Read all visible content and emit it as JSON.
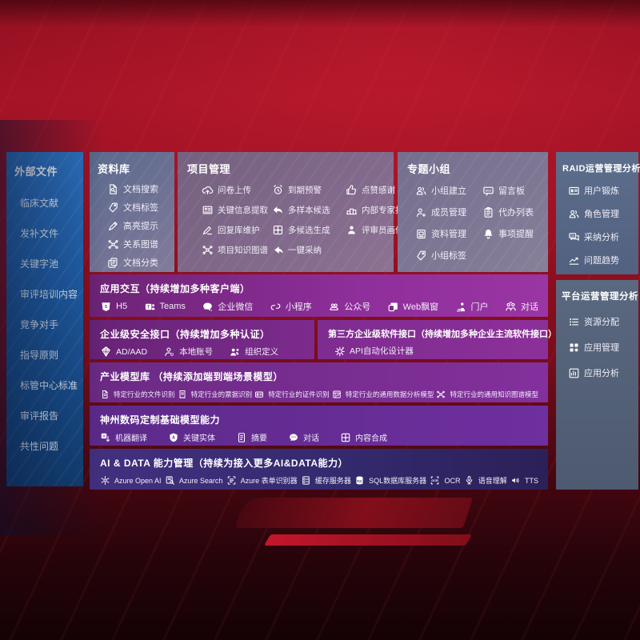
{
  "colors": {
    "background_red": "#8e1020",
    "sidebar_blue": "#1f5fa8",
    "panel_slate": "#6f7294",
    "panel_mauve": "#826a8c",
    "row_purple": "#7c2b8d",
    "row_magenta": "#8f2f9b",
    "row_deep_purple": "#5f2b90",
    "row_indigo": "#332a6e",
    "text": "#ffffff"
  },
  "sidebar": {
    "title": "外部文件",
    "items": [
      {
        "label": "临床文献"
      },
      {
        "label": "发补文件"
      },
      {
        "label": "关键字池"
      },
      {
        "label": "审评培训内容"
      },
      {
        "label": "竞争对手"
      },
      {
        "label": "指导原则"
      },
      {
        "label": "标管中心标准"
      },
      {
        "label": "审评报告"
      },
      {
        "label": "共性问题"
      }
    ]
  },
  "panels": {
    "library": {
      "title": "资料库",
      "items": [
        {
          "label": "文档搜索",
          "icon": "doc-search-icon"
        },
        {
          "label": "文档标签",
          "icon": "tag-icon"
        },
        {
          "label": "高亮提示",
          "icon": "highlight-pen-icon"
        },
        {
          "label": "关系图谱",
          "icon": "graph-icon"
        },
        {
          "label": "文档分类",
          "icon": "doc-copy-icon"
        }
      ]
    },
    "project": {
      "title": "项目管理",
      "items": [
        {
          "label": "问卷上传",
          "icon": "cloud-upload-icon"
        },
        {
          "label": "到期预警",
          "icon": "alarm-icon"
        },
        {
          "label": "点赞感谢",
          "icon": "thumbs-up-icon"
        },
        {
          "label": "关键信息提取",
          "icon": "extract-icon"
        },
        {
          "label": "多样本候选",
          "icon": "reply-arrow-icon"
        },
        {
          "label": "内部专家排名",
          "icon": "ranking-icon"
        },
        {
          "label": "回复库维护",
          "icon": "pencil-icon"
        },
        {
          "label": "多候选生成",
          "icon": "puzzle-icon"
        },
        {
          "label": "评审员画像",
          "icon": "person-icon"
        },
        {
          "label": "项目知识图谱",
          "icon": "graph-icon"
        },
        {
          "label": "一键采纳",
          "icon": "adopt-arrow-icon"
        }
      ]
    },
    "groups": {
      "title": "专题小组",
      "items": [
        {
          "label": "小组建立",
          "icon": "people-icon"
        },
        {
          "label": "留言板",
          "icon": "bbs-icon"
        },
        {
          "label": "成员管理",
          "icon": "person-add-icon"
        },
        {
          "label": "代办列表",
          "icon": "clipboard-icon"
        },
        {
          "label": "资料管理",
          "icon": "archive-icon"
        },
        {
          "label": "事项提醒",
          "icon": "bell-icon"
        },
        {
          "label": "小组标签",
          "icon": "tag-icon"
        }
      ]
    },
    "raid": {
      "title": "RAID运营管理分析",
      "items": [
        {
          "label": "用户锻炼",
          "icon": "id-card-icon"
        },
        {
          "label": "角色管理",
          "icon": "people-icon"
        },
        {
          "label": "采纳分析",
          "icon": "chat-qa-icon"
        },
        {
          "label": "问题趋势",
          "icon": "trend-icon"
        }
      ]
    },
    "platform": {
      "title": "平台运营管理分析",
      "items": [
        {
          "label": "资源分配",
          "icon": "list-icon"
        },
        {
          "label": "应用管理",
          "icon": "grid-icon"
        },
        {
          "label": "应用分析",
          "icon": "chart-icon"
        }
      ]
    }
  },
  "rows": {
    "interaction": {
      "title": "应用交互（持续增加多种客户端）",
      "items": [
        {
          "label": "H5",
          "icon": "h5-icon"
        },
        {
          "label": "Teams",
          "icon": "teams-icon"
        },
        {
          "label": "企业微信",
          "icon": "wecom-icon"
        },
        {
          "label": "小程序",
          "icon": "miniprogram-icon"
        },
        {
          "label": "公众号",
          "icon": "official-account-icon"
        },
        {
          "label": "Web飘窗",
          "icon": "web-window-icon"
        },
        {
          "label": "门户",
          "icon": "portal-icon"
        },
        {
          "label": "对话",
          "icon": "dialog-icon"
        }
      ]
    },
    "security": {
      "title": "企业级安全接口（持续增加多种认证）",
      "items": [
        {
          "label": "AD/AAD",
          "icon": "ad-shield-icon"
        },
        {
          "label": "本地账号",
          "icon": "local-account-icon"
        },
        {
          "label": "组织定义",
          "icon": "org-icon"
        }
      ]
    },
    "thirdparty": {
      "title": "第三方企业级软件接口（持续增加多种企业主流软件接口）",
      "items": [
        {
          "label": "API自动化设计器",
          "icon": "api-gear-icon"
        }
      ]
    },
    "models": {
      "title": "产业模型库 （持续添加端到端场景模型）",
      "items": [
        {
          "label": "特定行业的文件识别",
          "icon": "doc-icon"
        },
        {
          "label": "特定行业的票据识别",
          "icon": "receipt-icon"
        },
        {
          "label": "特定行业的证件识别",
          "icon": "id-badge-icon"
        },
        {
          "label": "特定行业的通用数据分析模型",
          "icon": "data-model-icon"
        },
        {
          "label": "特定行业的通用知识图谱模型",
          "icon": "graph-icon"
        }
      ]
    },
    "foundation": {
      "title": "神州数码定制基础模型能力",
      "items": [
        {
          "label": "机器翻译",
          "icon": "translate-icon"
        },
        {
          "label": "关键实体",
          "icon": "entity-shield-icon"
        },
        {
          "label": "摘要",
          "icon": "summary-doc-icon"
        },
        {
          "label": "对话",
          "icon": "chat-icon"
        },
        {
          "label": "内容合成",
          "icon": "puzzle-icon"
        }
      ]
    },
    "aidata": {
      "title": "AI & DATA 能力管理（持续为接入更多AI&DATA能力）",
      "items": [
        {
          "label": "Azure Open AI",
          "icon": "openai-icon"
        },
        {
          "label": "Azure Search",
          "icon": "azure-search-icon"
        },
        {
          "label": "Azure 表单识别器",
          "icon": "form-recognizer-icon"
        },
        {
          "label": "缓存服务器",
          "icon": "cache-server-icon"
        },
        {
          "label": "SQL数据库服务器",
          "icon": "sql-db-icon"
        },
        {
          "label": "OCR",
          "icon": "ocr-icon"
        },
        {
          "label": "语音理解",
          "icon": "speech-icon"
        },
        {
          "label": "TTS",
          "icon": "tts-icon"
        }
      ]
    }
  }
}
